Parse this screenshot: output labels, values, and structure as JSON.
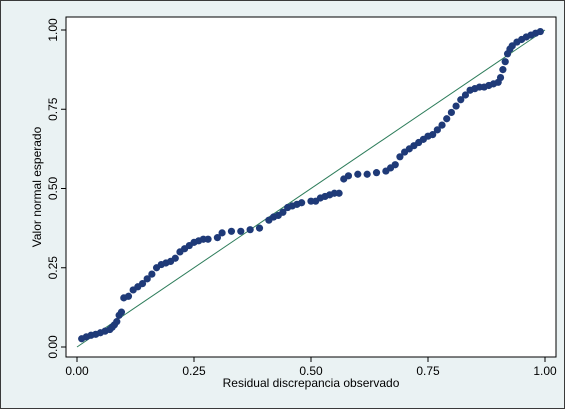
{
  "chart_data": {
    "type": "scatter",
    "title": "",
    "xlabel": "Residual discrepancia observado",
    "ylabel": "Valor normal esperado",
    "xlim": [
      0,
      1
    ],
    "ylim": [
      0,
      1
    ],
    "x_ticks": [
      "0.00",
      "0.25",
      "0.50",
      "0.75",
      "1.00"
    ],
    "y_ticks": [
      "0.00",
      "0.25",
      "0.50",
      "0.75",
      "1.00"
    ],
    "grid": false,
    "reference_line": {
      "from": [
        0,
        0
      ],
      "to": [
        1,
        1
      ],
      "color": "#2e7d5b"
    },
    "marker_color": "#1f3a78",
    "points": [
      [
        0.01,
        0.026
      ],
      [
        0.02,
        0.032
      ],
      [
        0.03,
        0.037
      ],
      [
        0.04,
        0.04
      ],
      [
        0.05,
        0.045
      ],
      [
        0.06,
        0.05
      ],
      [
        0.07,
        0.055
      ],
      [
        0.075,
        0.062
      ],
      [
        0.08,
        0.07
      ],
      [
        0.085,
        0.08
      ],
      [
        0.09,
        0.1
      ],
      [
        0.095,
        0.11
      ],
      [
        0.1,
        0.155
      ],
      [
        0.11,
        0.16
      ],
      [
        0.12,
        0.18
      ],
      [
        0.13,
        0.19
      ],
      [
        0.14,
        0.2
      ],
      [
        0.15,
        0.215
      ],
      [
        0.16,
        0.23
      ],
      [
        0.17,
        0.25
      ],
      [
        0.18,
        0.26
      ],
      [
        0.19,
        0.265
      ],
      [
        0.2,
        0.27
      ],
      [
        0.21,
        0.28
      ],
      [
        0.22,
        0.3
      ],
      [
        0.23,
        0.31
      ],
      [
        0.24,
        0.32
      ],
      [
        0.25,
        0.33
      ],
      [
        0.26,
        0.335
      ],
      [
        0.27,
        0.34
      ],
      [
        0.28,
        0.34
      ],
      [
        0.3,
        0.345
      ],
      [
        0.31,
        0.36
      ],
      [
        0.33,
        0.365
      ],
      [
        0.35,
        0.365
      ],
      [
        0.37,
        0.37
      ],
      [
        0.39,
        0.375
      ],
      [
        0.41,
        0.4
      ],
      [
        0.42,
        0.41
      ],
      [
        0.43,
        0.415
      ],
      [
        0.44,
        0.425
      ],
      [
        0.45,
        0.44
      ],
      [
        0.46,
        0.445
      ],
      [
        0.47,
        0.45
      ],
      [
        0.48,
        0.455
      ],
      [
        0.5,
        0.46
      ],
      [
        0.51,
        0.46
      ],
      [
        0.52,
        0.47
      ],
      [
        0.53,
        0.475
      ],
      [
        0.54,
        0.48
      ],
      [
        0.55,
        0.485
      ],
      [
        0.56,
        0.485
      ],
      [
        0.57,
        0.53
      ],
      [
        0.58,
        0.54
      ],
      [
        0.6,
        0.545
      ],
      [
        0.62,
        0.545
      ],
      [
        0.64,
        0.55
      ],
      [
        0.66,
        0.555
      ],
      [
        0.67,
        0.565
      ],
      [
        0.68,
        0.575
      ],
      [
        0.69,
        0.6
      ],
      [
        0.7,
        0.615
      ],
      [
        0.71,
        0.625
      ],
      [
        0.72,
        0.635
      ],
      [
        0.73,
        0.645
      ],
      [
        0.74,
        0.655
      ],
      [
        0.75,
        0.665
      ],
      [
        0.76,
        0.67
      ],
      [
        0.77,
        0.685
      ],
      [
        0.78,
        0.7
      ],
      [
        0.79,
        0.72
      ],
      [
        0.8,
        0.74
      ],
      [
        0.81,
        0.76
      ],
      [
        0.82,
        0.78
      ],
      [
        0.83,
        0.795
      ],
      [
        0.84,
        0.81
      ],
      [
        0.85,
        0.815
      ],
      [
        0.86,
        0.82
      ],
      [
        0.87,
        0.82
      ],
      [
        0.88,
        0.825
      ],
      [
        0.89,
        0.83
      ],
      [
        0.9,
        0.835
      ],
      [
        0.905,
        0.85
      ],
      [
        0.91,
        0.875
      ],
      [
        0.915,
        0.9
      ],
      [
        0.92,
        0.925
      ],
      [
        0.925,
        0.94
      ],
      [
        0.93,
        0.95
      ],
      [
        0.94,
        0.962
      ],
      [
        0.95,
        0.97
      ],
      [
        0.96,
        0.978
      ],
      [
        0.97,
        0.984
      ],
      [
        0.98,
        0.99
      ],
      [
        0.99,
        0.995
      ]
    ]
  }
}
